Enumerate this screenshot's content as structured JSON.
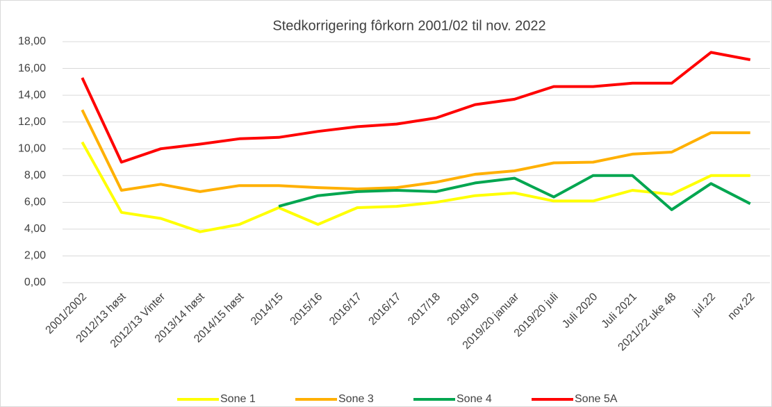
{
  "chart_data": {
    "type": "line",
    "title": "Stedkorrigering fôrkorn 2001/02 til nov. 2022",
    "categories": [
      "2001/2002",
      "2012/13 høst",
      "2012/13 Vinter",
      "2013/14 høst",
      "2014/15 høst",
      "2014/15",
      "2015/16",
      "2016/17",
      "2016/17",
      "2017/18",
      "2018/19",
      "2019/20 januar",
      "2019/20 juli",
      "Juli 2020",
      "Juli 2021",
      "2021/22 uke 48",
      "jul.22",
      "nov.22"
    ],
    "series": [
      {
        "name": "Sone 1",
        "color": "#ffff00",
        "values": [
          10.5,
          5.25,
          4.8,
          3.8,
          4.35,
          5.6,
          4.35,
          5.6,
          5.7,
          6.0,
          6.5,
          6.7,
          6.1,
          6.1,
          6.9,
          6.6,
          8.0,
          8.0
        ]
      },
      {
        "name": "Sone 3",
        "color": "#ffb000",
        "values": [
          12.9,
          6.9,
          7.35,
          6.8,
          7.25,
          7.25,
          7.1,
          7.0,
          7.1,
          7.5,
          8.1,
          8.35,
          8.95,
          9.0,
          9.6,
          9.75,
          11.2,
          11.2
        ]
      },
      {
        "name": "Sone 4",
        "color": "#00a650",
        "values": [
          null,
          null,
          null,
          null,
          null,
          5.7,
          6.5,
          6.8,
          6.9,
          6.8,
          7.45,
          7.8,
          6.4,
          8.0,
          8.0,
          5.45,
          7.4,
          5.9
        ]
      },
      {
        "name": "Sone 5A",
        "color": "#ff0000",
        "values": [
          15.3,
          9.0,
          10.0,
          10.35,
          10.75,
          10.85,
          11.3,
          11.65,
          11.85,
          12.3,
          13.3,
          13.7,
          14.65,
          14.65,
          14.9,
          14.9,
          17.2,
          16.65
        ]
      }
    ],
    "ylim": [
      0,
      18
    ],
    "yticks": [
      {
        "value": 0,
        "label": "0,00"
      },
      {
        "value": 2,
        "label": "2,00"
      },
      {
        "value": 4,
        "label": "4,00"
      },
      {
        "value": 6,
        "label": "6,00"
      },
      {
        "value": 8,
        "label": "8,00"
      },
      {
        "value": 10,
        "label": "10,00"
      },
      {
        "value": 12,
        "label": "12,00"
      },
      {
        "value": 14,
        "label": "14,00"
      },
      {
        "value": 16,
        "label": "16,00"
      },
      {
        "value": 18,
        "label": "18,00"
      }
    ],
    "grid": true,
    "legend": "bottom"
  }
}
